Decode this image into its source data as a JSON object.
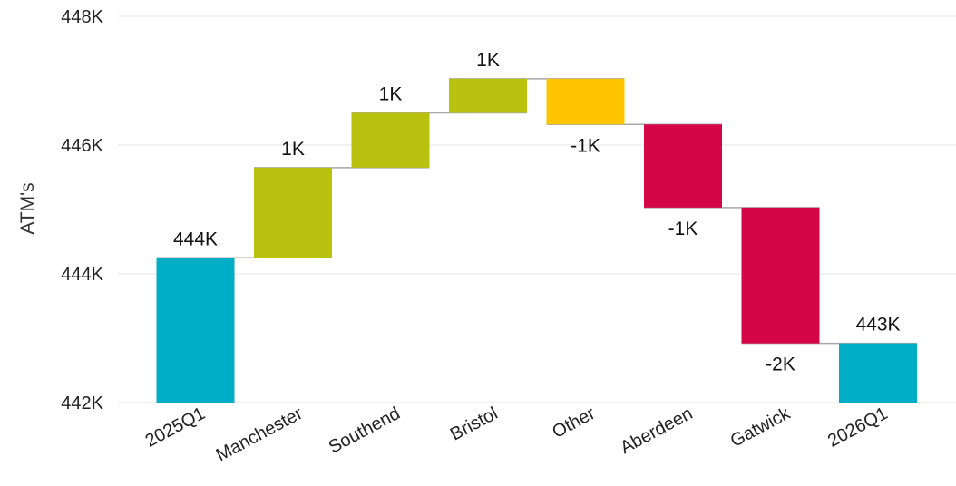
{
  "chart_data": {
    "type": "waterfall",
    "ylabel": "ATM's",
    "ylim": [
      442000,
      448000
    ],
    "yticks": [
      442000,
      444000,
      446000,
      448000
    ],
    "ytick_labels": [
      "442K",
      "444K",
      "446K",
      "448K"
    ],
    "grid": true,
    "categories": [
      "2025Q1",
      "Manchester",
      "Southend",
      "Bristol",
      "Other",
      "Aberdeen",
      "Gatwick",
      "2026Q1"
    ],
    "bars": [
      {
        "category": "2025Q1",
        "kind": "total",
        "start": 442000,
        "end": 444250,
        "label": "444K",
        "color": "#00ADC6"
      },
      {
        "category": "Manchester",
        "kind": "increase",
        "start": 444250,
        "end": 445650,
        "label": "1K",
        "color": "#B8C20F"
      },
      {
        "category": "Southend",
        "kind": "increase",
        "start": 445650,
        "end": 446500,
        "label": "1K",
        "color": "#B8C20F"
      },
      {
        "category": "Bristol",
        "kind": "increase",
        "start": 446500,
        "end": 447030,
        "label": "1K",
        "color": "#B8C20F"
      },
      {
        "category": "Other",
        "kind": "decrease",
        "start": 447030,
        "end": 446320,
        "label": "-1K",
        "color": "#FFC400"
      },
      {
        "category": "Aberdeen",
        "kind": "decrease",
        "start": 446320,
        "end": 445030,
        "label": "-1K",
        "color": "#D40647"
      },
      {
        "category": "Gatwick",
        "kind": "decrease",
        "start": 445030,
        "end": 442920,
        "label": "-2K",
        "color": "#D40647"
      },
      {
        "category": "2026Q1",
        "kind": "total",
        "start": 442000,
        "end": 442920,
        "label": "443K",
        "color": "#00ADC6"
      }
    ]
  }
}
